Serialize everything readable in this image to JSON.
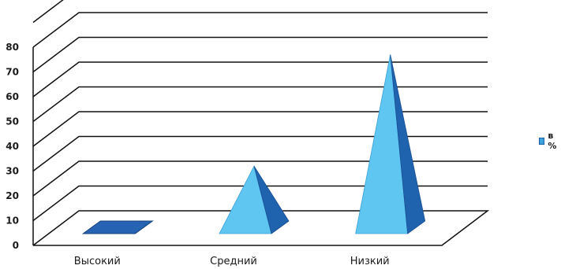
{
  "chart_data": {
    "type": "bar",
    "subtype": "3d-pyramid",
    "categories": [
      "Высокий",
      "Средний",
      "Низкий"
    ],
    "series": [
      {
        "name": "в %",
        "values": [
          1,
          32,
          77
        ]
      }
    ],
    "y_ticks": [
      "0",
      "10",
      "20",
      "30",
      "40",
      "50",
      "60",
      "70",
      "80"
    ],
    "ylim": [
      0,
      90
    ],
    "grid": true,
    "legend_position": "right",
    "colors": {
      "front": "#5fc6f2",
      "side": "#1f62ad",
      "side_dark": "#1a4f94",
      "flat": "#2763b3"
    }
  }
}
